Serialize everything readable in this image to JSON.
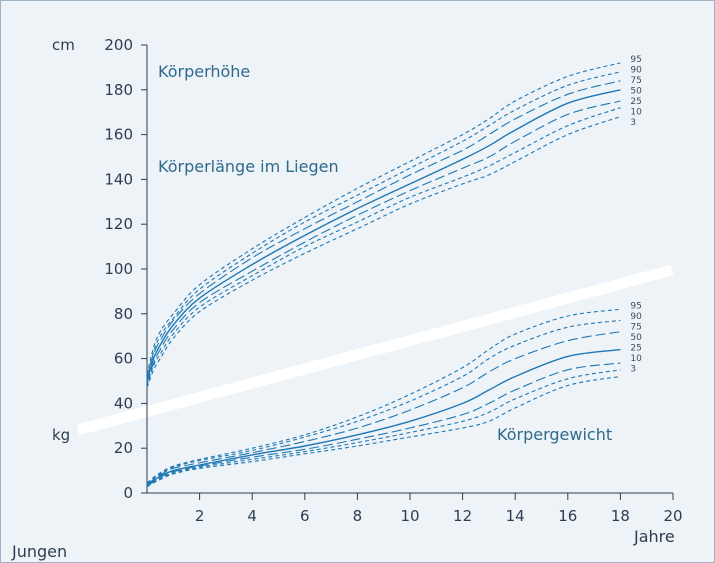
{
  "chart_data": {
    "type": "line",
    "xlabel": "Jahre",
    "x_ticks": [
      2,
      4,
      6,
      8,
      10,
      12,
      14,
      16,
      18,
      20
    ],
    "y_ticks": [
      0,
      20,
      40,
      60,
      80,
      100,
      120,
      140,
      160,
      180,
      200
    ],
    "xlim": [
      0,
      20
    ],
    "ylim": [
      0,
      200
    ],
    "y_unit_top": "cm",
    "y_unit_bottom": "kg",
    "group_label": "Jungen",
    "grid": false,
    "panels": [
      {
        "name": "Körperhöhe / Körperlänge im Liegen",
        "label_top": "Körperhöhe",
        "label_mid": "Körperlänge im Liegen",
        "unit": "cm",
        "x": [
          0,
          0.25,
          0.5,
          1,
          2,
          4,
          6,
          8,
          10,
          12,
          13,
          14,
          16,
          18
        ],
        "series": [
          {
            "name": "95",
            "values": [
              53,
              65,
              72,
              80,
              93,
              109,
              123,
              136,
              148,
              160,
              167,
              175,
              186,
              192
            ]
          },
          {
            "name": "90",
            "values": [
              52,
              63,
              70,
              78,
              91,
              107,
              121,
              133,
              145,
              157,
              164,
              171,
              182,
              188
            ]
          },
          {
            "name": "75",
            "values": [
              51,
              62,
              68,
              77,
              89,
              105,
              118,
              130,
              142,
              153,
              160,
              167,
              178,
              184
            ]
          },
          {
            "name": "50",
            "values": [
              50,
              60,
              66,
              75,
              87,
              102,
              115,
              127,
              138,
              149,
              155,
              162,
              174,
              180
            ]
          },
          {
            "name": "25",
            "values": [
              49,
              58,
              64,
              73,
              85,
              99,
              112,
              124,
              135,
              145,
              150,
              157,
              169,
              175
            ]
          },
          {
            "name": "10",
            "values": [
              48,
              57,
              62,
              71,
              83,
              97,
              110,
              121,
              132,
              141,
              146,
              152,
              164,
              172
            ]
          },
          {
            "name": "3",
            "values": [
              47,
              55,
              60,
              69,
              81,
              95,
              107,
              118,
              129,
              138,
              142,
              148,
              160,
              168
            ]
          }
        ]
      },
      {
        "name": "Körpergewicht",
        "label": "Körpergewicht",
        "unit": "kg",
        "x": [
          0,
          0.25,
          0.5,
          1,
          2,
          4,
          6,
          8,
          10,
          12,
          13,
          14,
          16,
          18
        ],
        "series": [
          {
            "name": "95",
            "values": [
              4.5,
              7,
              9,
              12,
              15,
              20,
              26,
              34,
              44,
              56,
              64,
              71,
              79,
              82
            ]
          },
          {
            "name": "90",
            "values": [
              4.2,
              6.5,
              8.5,
              11.5,
              14.5,
              19,
              25,
              32,
              41,
              52,
              60,
              66,
              74,
              77
            ]
          },
          {
            "name": "75",
            "values": [
              4,
              6,
              8,
              11,
              13.5,
              18,
              23,
              29,
              37,
              47,
              54,
              60,
              68,
              72
            ]
          },
          {
            "name": "50",
            "values": [
              3.5,
              5.5,
              7.5,
              10,
              12.5,
              17,
              21,
              26,
              32,
              40,
              46,
              52,
              61,
              64
            ]
          },
          {
            "name": "25",
            "values": [
              3.2,
              5,
              7,
              9.5,
              12,
              16,
              19.5,
              24,
              29,
              35,
              40,
              46,
              55,
              58
            ]
          },
          {
            "name": "10",
            "values": [
              3,
              4.8,
              6.5,
              9,
              11.5,
              15,
              18.5,
              22.5,
              27,
              32,
              36,
              42,
              51,
              55
            ]
          },
          {
            "name": "3",
            "values": [
              2.8,
              4.5,
              6,
              8.5,
              11,
              14,
              17.5,
              21,
              25,
              29,
              32,
              38,
              48,
              52
            ]
          }
        ]
      }
    ],
    "colors": {
      "curve": "#1f78b4",
      "axis": "#2d3e50",
      "divider": "#ffffff",
      "panel_bg": "#eef3f8",
      "label": "#2f6a8c"
    }
  }
}
